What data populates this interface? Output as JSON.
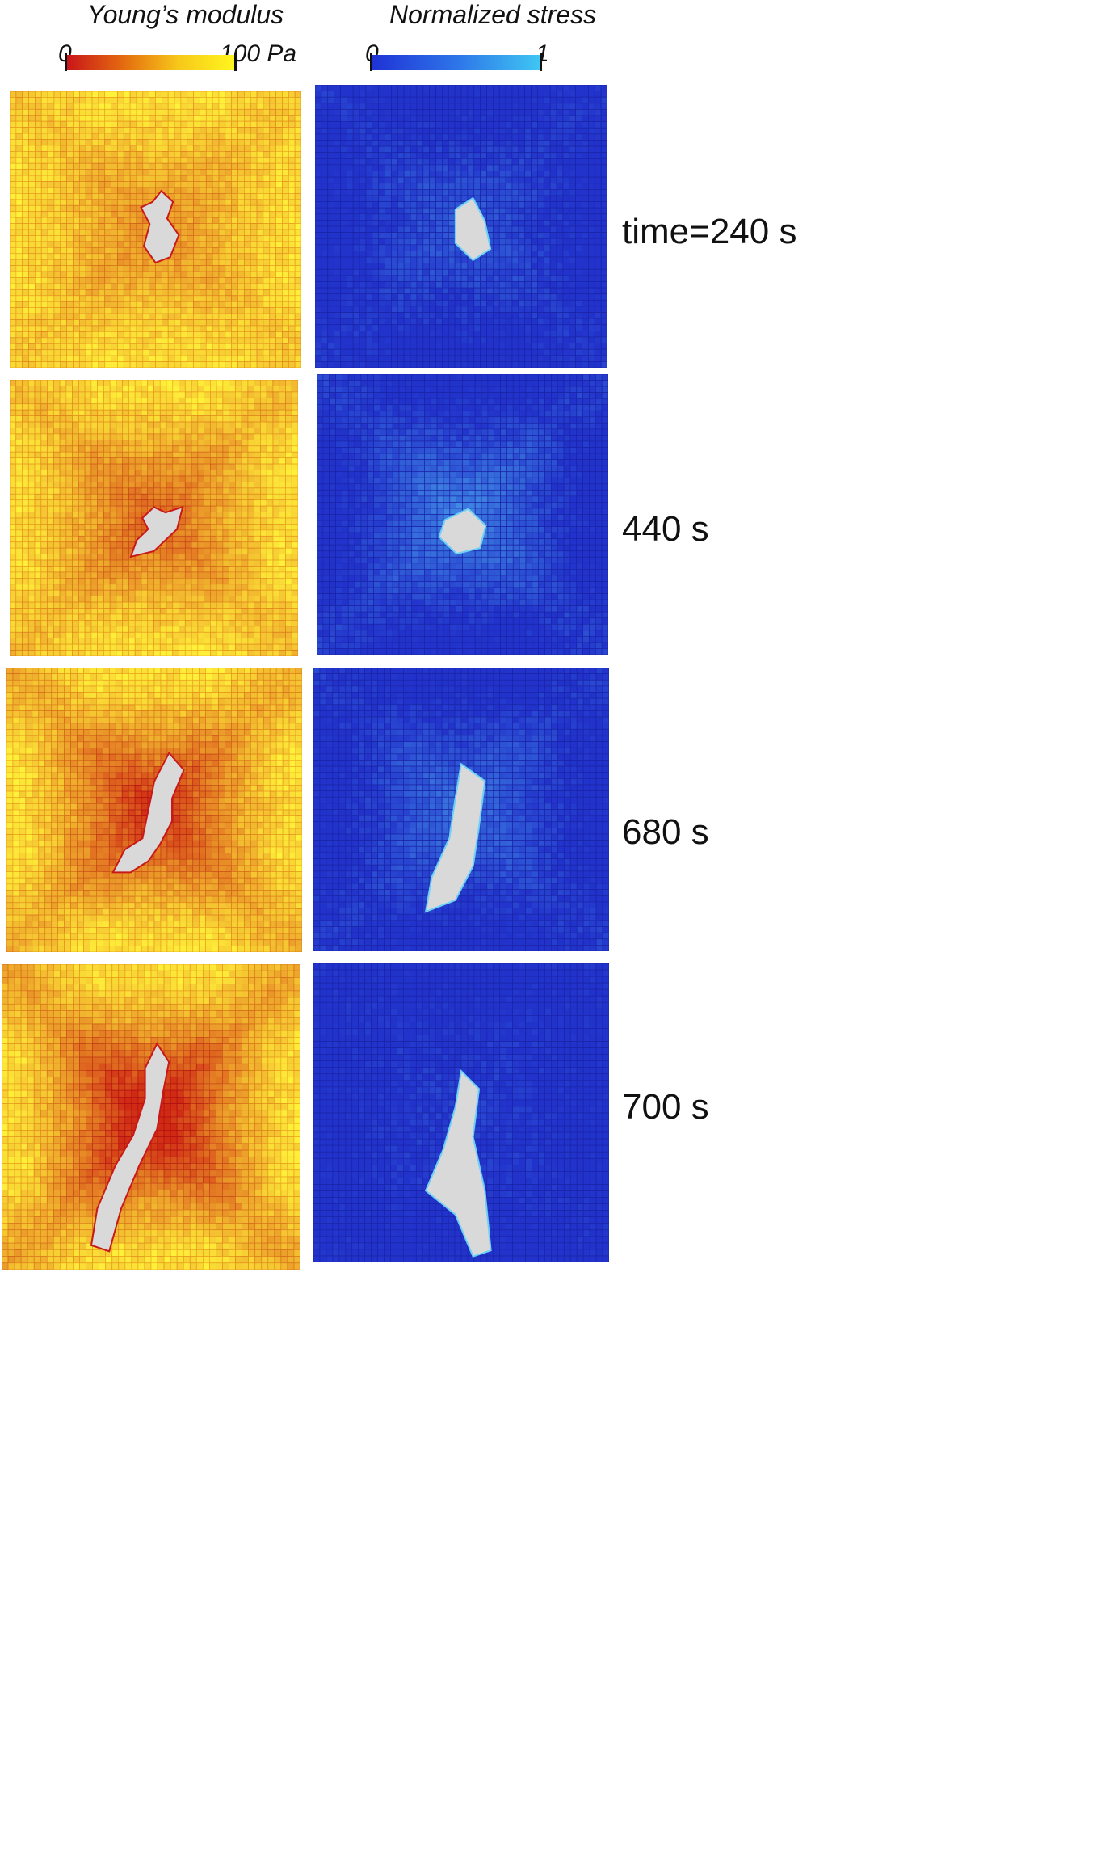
{
  "legend": {
    "youngs": {
      "title": "Young’s modulus",
      "min_label": "0",
      "max_label": "100 Pa",
      "gradient": [
        "#c9161a",
        "#e46a0f",
        "#f7c81a",
        "#fff51f"
      ]
    },
    "stress": {
      "title": "Normalized stress",
      "min_label": "0",
      "max_label": "1",
      "gradient": [
        "#1f33d6",
        "#2e74e8",
        "#3fc6f2"
      ]
    }
  },
  "colors": {
    "cavity": "#d9d9d9",
    "young_base": "#f6d84a",
    "stress_base": "#2a3ed0"
  },
  "rows": [
    {
      "time_label": "time=240 s",
      "softening_fraction": 0.3,
      "stress_fraction": 0.25
    },
    {
      "time_label": "440 s",
      "softening_fraction": 0.45,
      "stress_fraction": 0.45
    },
    {
      "time_label": "680 s",
      "softening_fraction": 0.65,
      "stress_fraction": 0.35
    },
    {
      "time_label": "700 s",
      "softening_fraction": 0.8,
      "stress_fraction": 0.1
    }
  ]
}
